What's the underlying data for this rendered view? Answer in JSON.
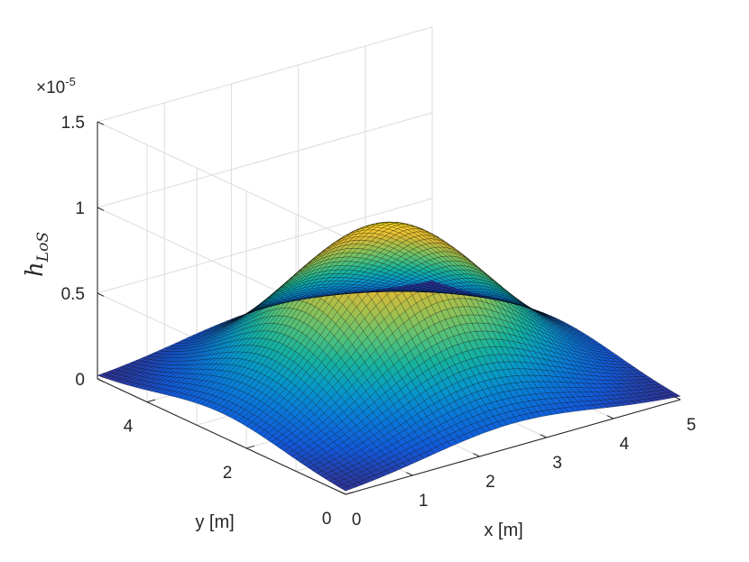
{
  "chart_data": {
    "type": "surface",
    "title": "",
    "xlabel": "x [m]",
    "ylabel": "y [m]",
    "zlabel_main": "h",
    "zlabel_sub": "LoS",
    "z_exponent_base": "×10",
    "z_exponent_power": "-5",
    "xlim": [
      0,
      5
    ],
    "ylim": [
      0,
      5
    ],
    "zlim": [
      0,
      1.5
    ],
    "x_ticks": [
      0,
      1,
      2,
      3,
      4,
      5
    ],
    "x_tick_labels": [
      "0",
      "1",
      "2",
      "3",
      "4",
      "5"
    ],
    "y_ticks": [
      0,
      2,
      4
    ],
    "y_tick_labels": [
      "0",
      "2",
      "4"
    ],
    "z_ticks": [
      0,
      0.5,
      1,
      1.5
    ],
    "z_tick_labels": [
      "0",
      "0.5",
      "1",
      "1.5"
    ],
    "grid": true,
    "colormap": "parula",
    "peak": {
      "x": 2.5,
      "y": 2.5,
      "z": 0.95
    },
    "corner_z": 0.02,
    "colors": {
      "grid": "#dcdcdc",
      "axis": "#262626",
      "mesh": "#000000"
    }
  }
}
